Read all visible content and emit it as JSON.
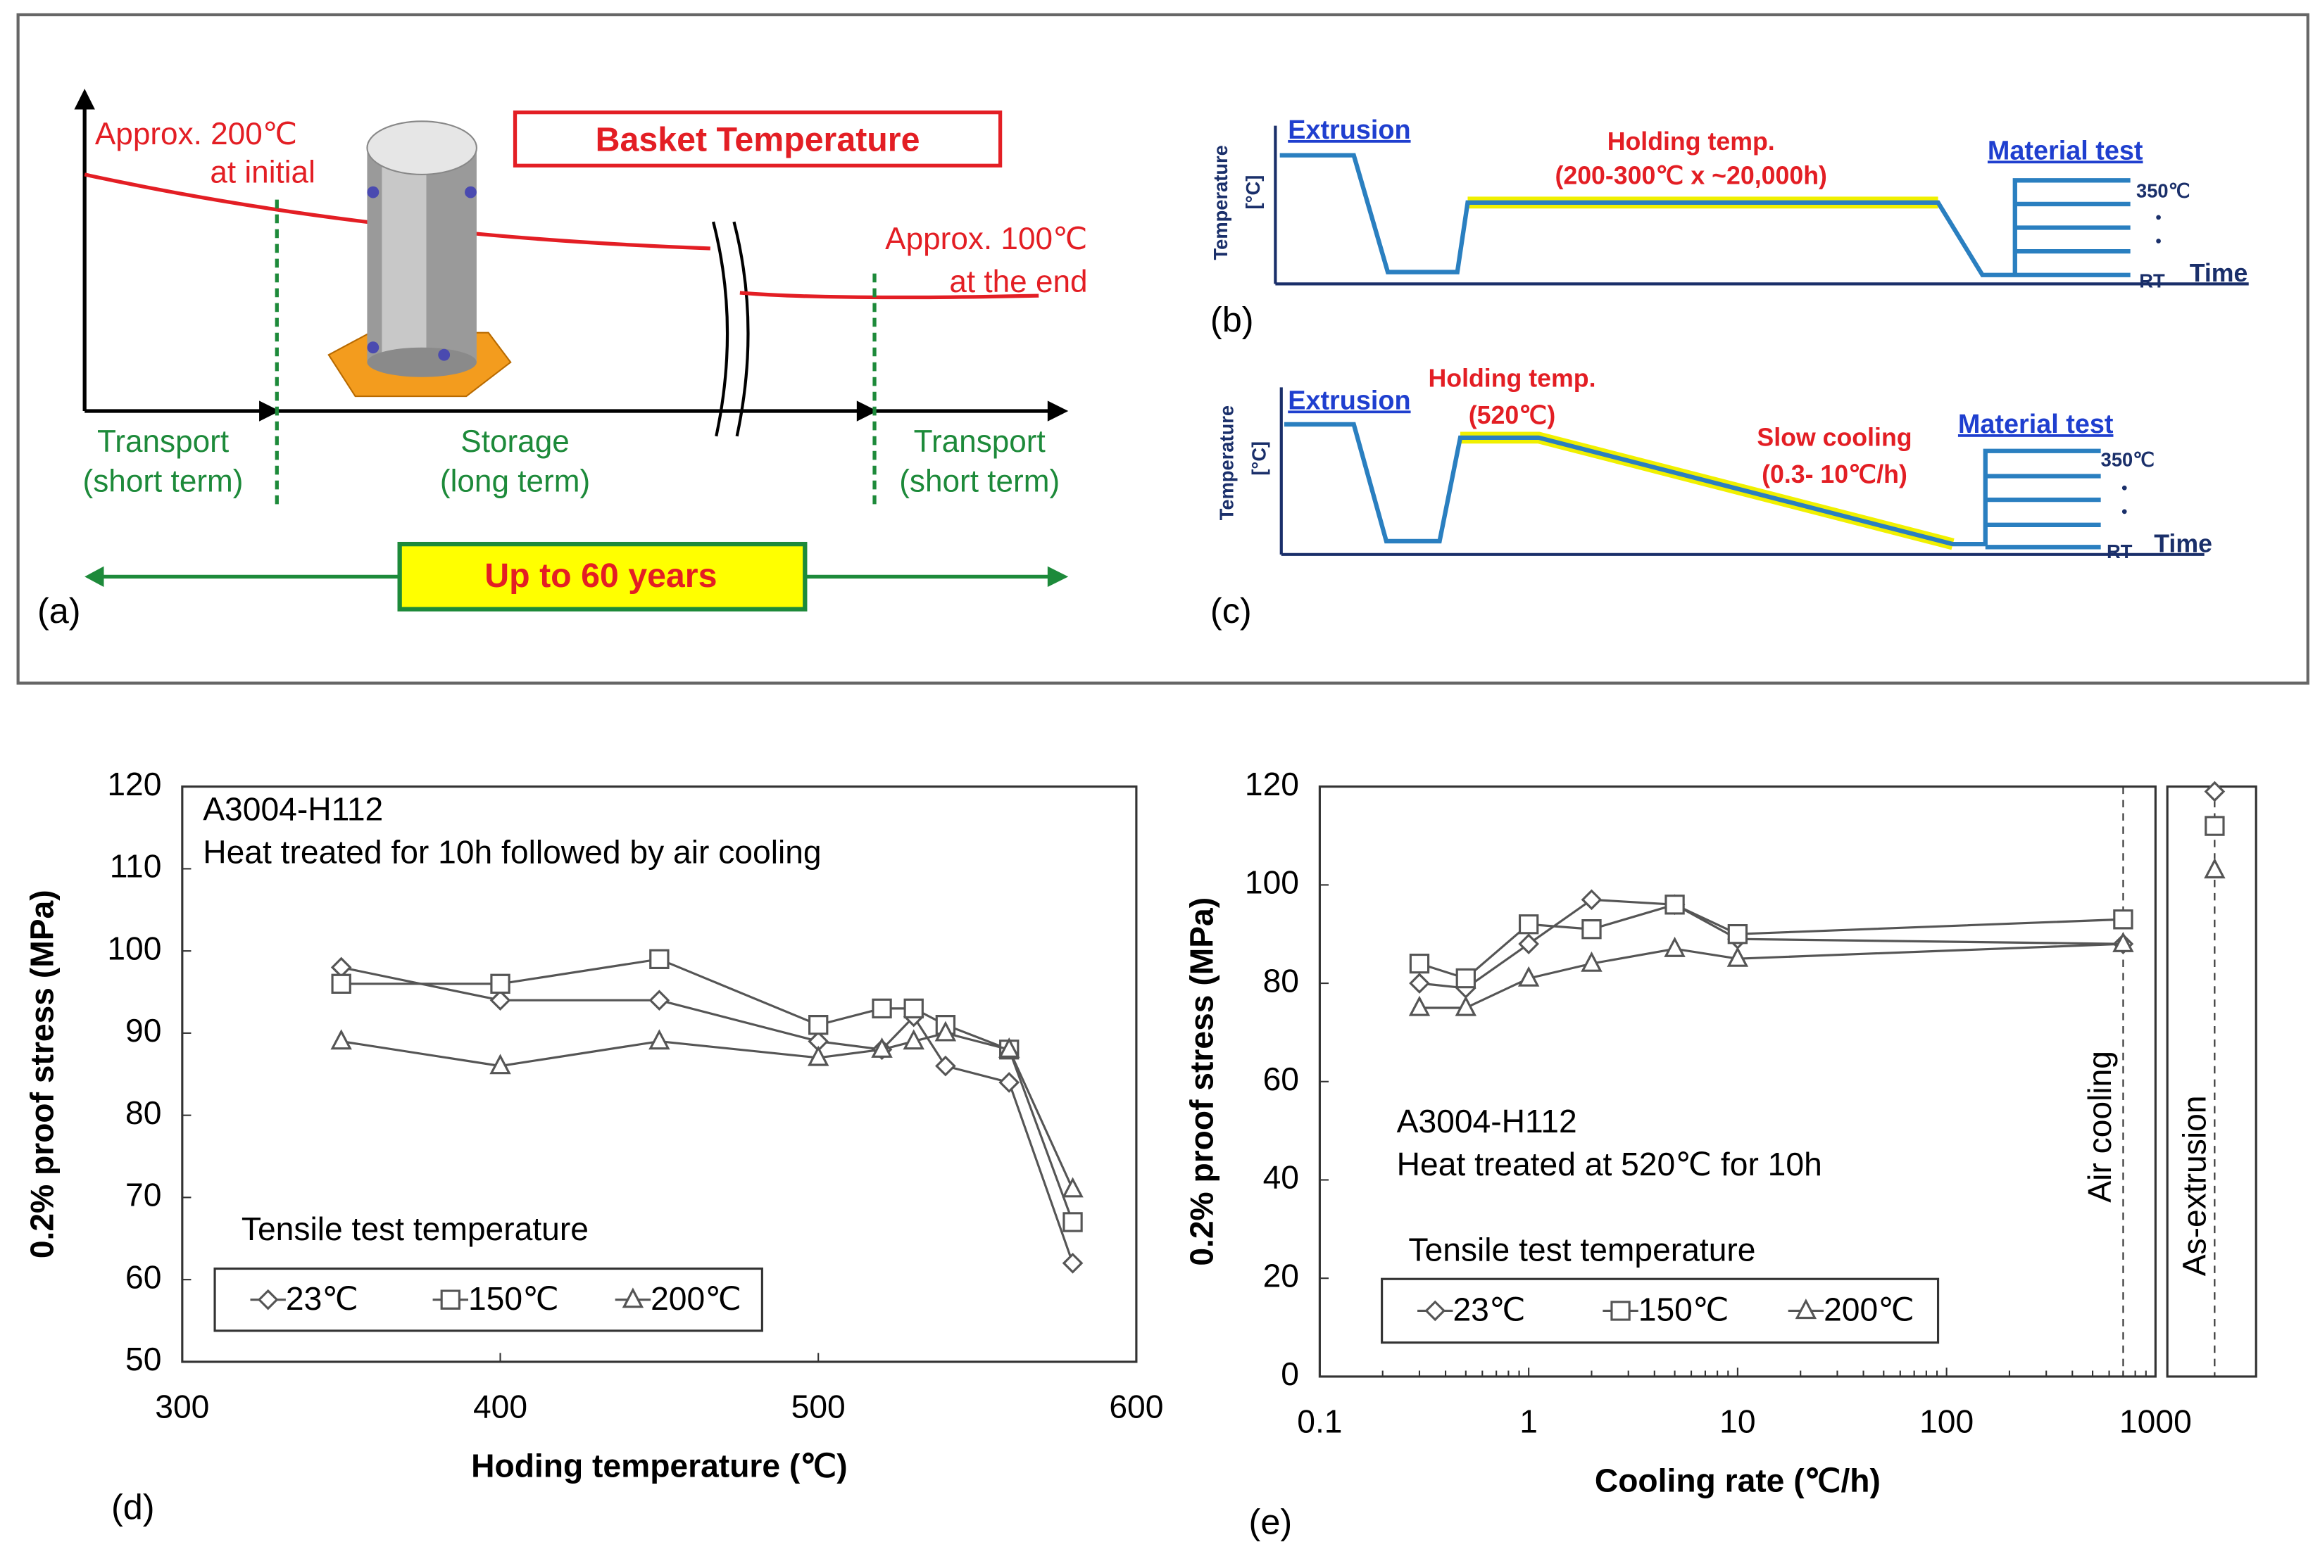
{
  "panel_a": {
    "title": "Basket Temperature",
    "start_temp": [
      "Approx. 200℃",
      "at initial"
    ],
    "end_temp": [
      "Approx. 100℃",
      "at the end"
    ],
    "phases": [
      [
        "Transport",
        "(short term)"
      ],
      [
        "Storage",
        "(long term)"
      ],
      [
        "Transport",
        "(short term)"
      ]
    ],
    "span": "Up to 60 years",
    "label": "(a)"
  },
  "panel_b": {
    "ylabel": [
      "Temperature",
      "[°C]"
    ],
    "stages": [
      "Extrusion",
      "Material test"
    ],
    "holding": [
      "Holding temp.",
      "(200-300℃ x ~20,000h)"
    ],
    "top_level": "350℃",
    "bottom_level": "RT",
    "xlabel": "Time",
    "label": "(b)"
  },
  "panel_c": {
    "ylabel": [
      "Temperature",
      "[°C]"
    ],
    "stages": [
      "Extrusion",
      "Material test"
    ],
    "holding": [
      "Holding temp.",
      "(520℃)"
    ],
    "cooling": [
      "Slow cooling",
      "(0.3- 10℃/h)"
    ],
    "top_level": "350℃",
    "bottom_level": "RT",
    "xlabel": "Time",
    "label": "(c)"
  },
  "chart_data": [
    {
      "type": "line",
      "xlabel": "Hoding temperature (℃)",
      "ylabel": "0.2% proof stress  (MPa)",
      "annotations": [
        "A3004-H112",
        "Heat treated for 10h followed by air cooling"
      ],
      "legend_title": "Tensile test temperature",
      "panel_label": "(d)",
      "x": [
        350,
        400,
        450,
        500,
        520,
        530,
        540,
        560,
        580
      ],
      "series": [
        {
          "name": "23℃",
          "marker": "diamond",
          "color": "#555555",
          "values": [
            98,
            94,
            94,
            89,
            88,
            92,
            86,
            84,
            62
          ]
        },
        {
          "name": "150℃",
          "marker": "square",
          "color": "#555555",
          "values": [
            96,
            96,
            99,
            91,
            93,
            93,
            91,
            88,
            67
          ]
        },
        {
          "name": "200℃",
          "marker": "triangle",
          "color": "#555555",
          "values": [
            89,
            86,
            89,
            87,
            88,
            89,
            90,
            88,
            71
          ]
        }
      ],
      "xlim": [
        300,
        600
      ],
      "xticks": [
        300,
        400,
        500,
        600
      ],
      "ylim": [
        50,
        120
      ],
      "yticks": [
        50,
        60,
        70,
        80,
        90,
        100,
        110,
        120
      ]
    },
    {
      "type": "line",
      "xscale": "log",
      "xlabel": "Cooling rate (℃/h)",
      "ylabel": "0.2% proof stress (MPa)",
      "annotations": [
        "A3004-H112",
        "Heat treated at 520℃ for 10h"
      ],
      "legend_title": "Tensile test temperature",
      "panel_label": "(e)",
      "reference_labels": [
        "Air cooling",
        "As-extrusion"
      ],
      "x": [
        0.3,
        0.5,
        1,
        2,
        5,
        10,
        700
      ],
      "series": [
        {
          "name": "23℃",
          "marker": "diamond",
          "color": "#555555",
          "values": [
            80,
            79,
            88,
            97,
            96,
            89,
            88
          ],
          "as_extrusion": 119
        },
        {
          "name": "150℃",
          "marker": "square",
          "color": "#555555",
          "values": [
            84,
            81,
            92,
            91,
            96,
            90,
            93
          ],
          "as_extrusion": 112
        },
        {
          "name": "200℃",
          "marker": "triangle",
          "color": "#555555",
          "values": [
            75,
            75,
            81,
            84,
            87,
            85,
            88
          ],
          "as_extrusion": 103
        }
      ],
      "xlim": [
        0.1,
        1000
      ],
      "xticks": [
        0.1,
        1,
        10,
        100,
        1000
      ],
      "ylim": [
        0,
        120
      ],
      "yticks": [
        0,
        20,
        40,
        60,
        80,
        100,
        120
      ]
    }
  ]
}
